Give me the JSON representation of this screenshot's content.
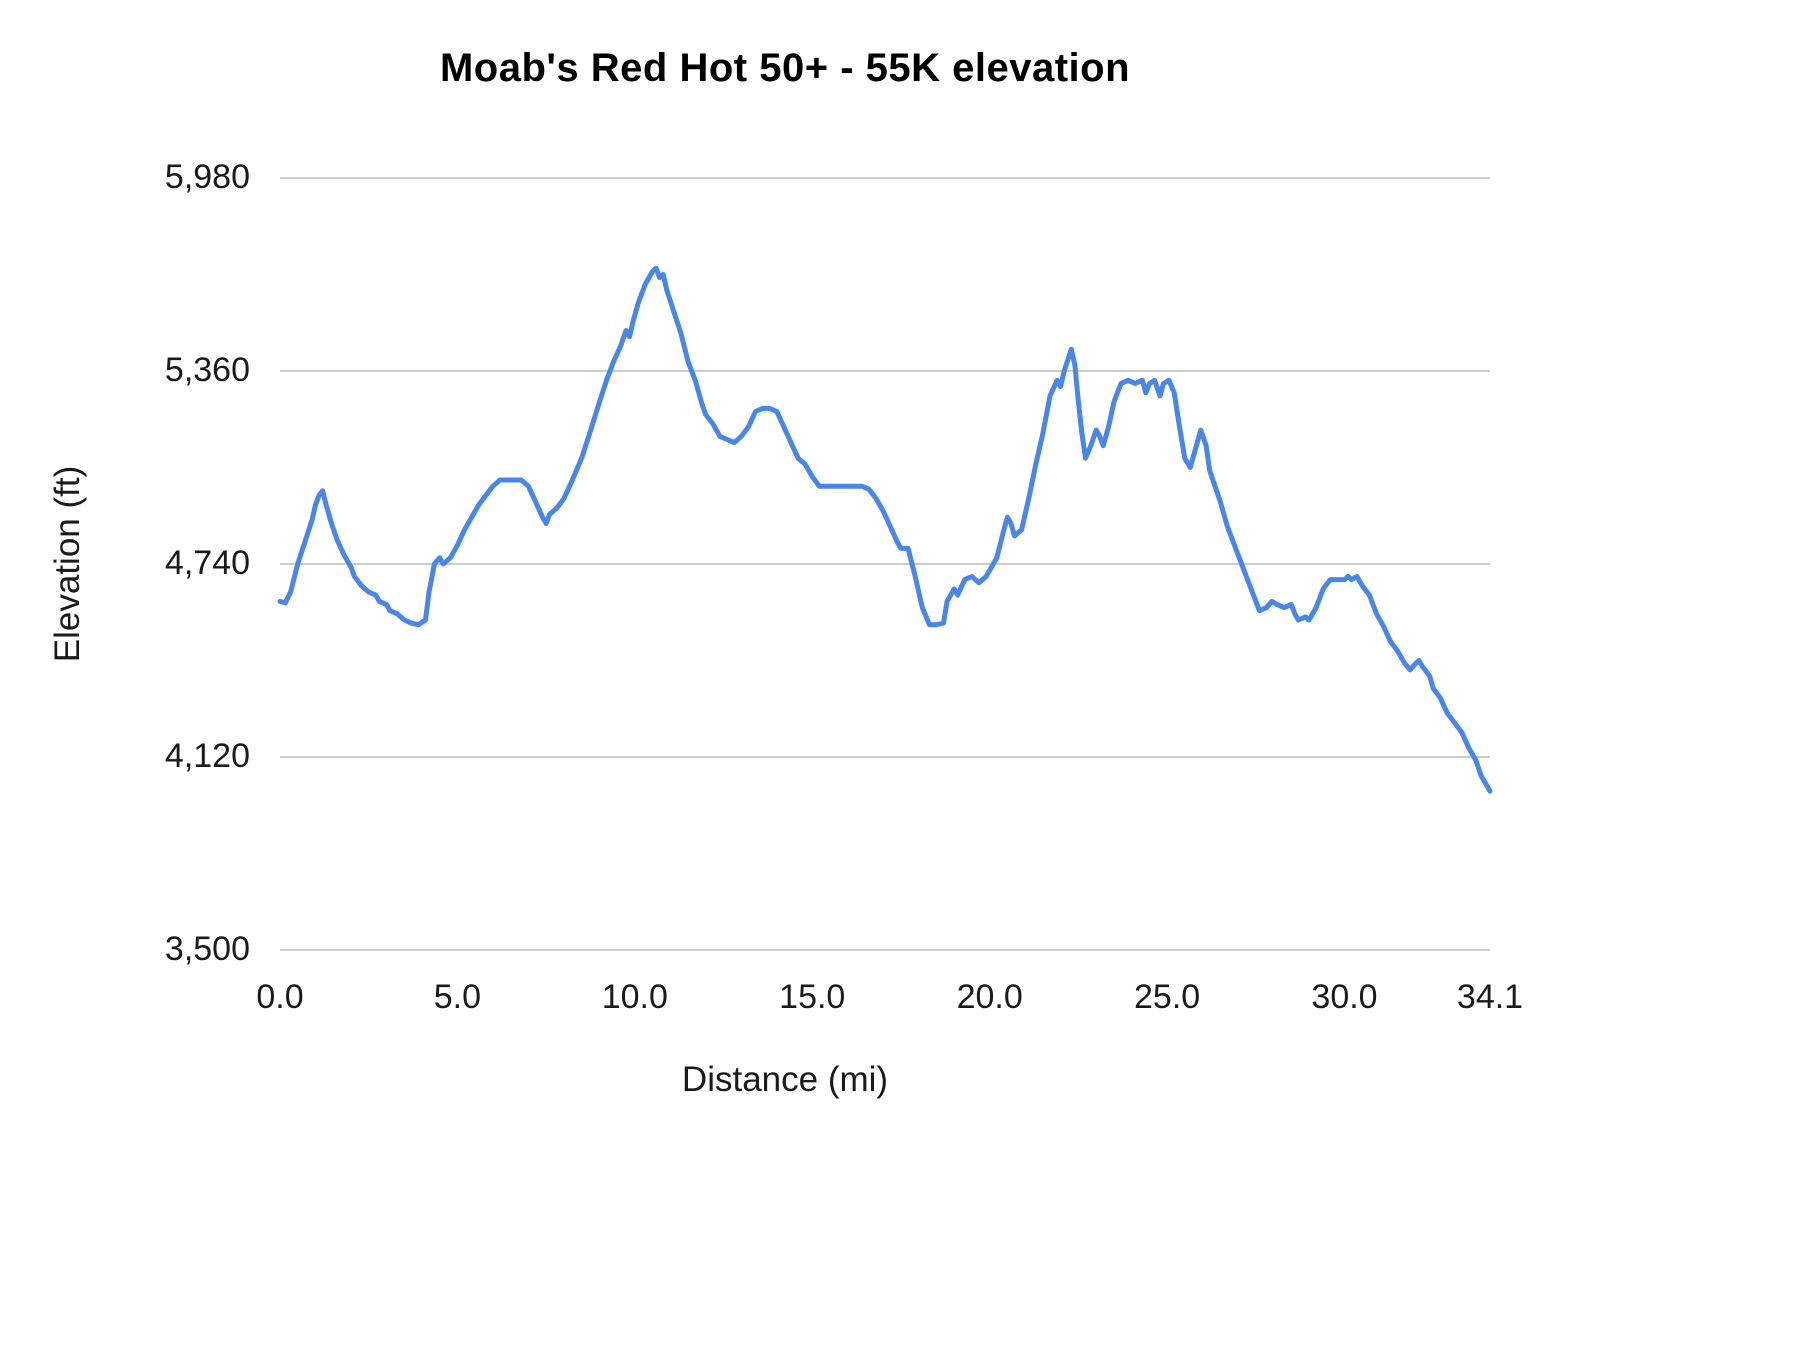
{
  "chart": {
    "title": "Moab's Red Hot 50+ - 55K elevation",
    "xlabel": "Distance (mi)",
    "ylabel": "Elevation (ft)"
  },
  "chart_data": {
    "type": "line",
    "title": "Moab's Red Hot 50+ - 55K elevation",
    "xlabel": "Distance (mi)",
    "ylabel": "Elevation (ft)",
    "xlim": [
      0,
      34.1
    ],
    "ylim": [
      3500,
      5980
    ],
    "grid": true,
    "legend": "none",
    "line_color": "#4a86e8",
    "grid_color": "#cccccc",
    "xticks": {
      "values": [
        0,
        5,
        10,
        15,
        20,
        25,
        30,
        34.1
      ],
      "labels": [
        "0.0",
        "5.0",
        "10.0",
        "15.0",
        "20.0",
        "25.0",
        "30.0",
        "34.1"
      ]
    },
    "yticks": {
      "values": [
        3500,
        4120,
        4740,
        5360,
        5980
      ],
      "labels": [
        "3,500",
        "4,120",
        "4,740",
        "5,360",
        "5,980"
      ]
    },
    "series": [
      {
        "name": "elevation",
        "points": [
          [
            0.0,
            4620
          ],
          [
            0.15,
            4615
          ],
          [
            0.3,
            4650
          ],
          [
            0.5,
            4740
          ],
          [
            0.7,
            4810
          ],
          [
            0.9,
            4880
          ],
          [
            1.0,
            4930
          ],
          [
            1.1,
            4960
          ],
          [
            1.2,
            4975
          ],
          [
            1.3,
            4930
          ],
          [
            1.45,
            4870
          ],
          [
            1.6,
            4820
          ],
          [
            1.8,
            4770
          ],
          [
            2.0,
            4730
          ],
          [
            2.1,
            4700
          ],
          [
            2.3,
            4670
          ],
          [
            2.5,
            4650
          ],
          [
            2.7,
            4640
          ],
          [
            2.8,
            4620
          ],
          [
            3.0,
            4610
          ],
          [
            3.1,
            4590
          ],
          [
            3.3,
            4580
          ],
          [
            3.5,
            4560
          ],
          [
            3.7,
            4550
          ],
          [
            3.9,
            4545
          ],
          [
            4.1,
            4560
          ],
          [
            4.2,
            4650
          ],
          [
            4.35,
            4740
          ],
          [
            4.5,
            4760
          ],
          [
            4.6,
            4740
          ],
          [
            4.8,
            4760
          ],
          [
            5.0,
            4800
          ],
          [
            5.2,
            4850
          ],
          [
            5.4,
            4890
          ],
          [
            5.6,
            4930
          ],
          [
            5.8,
            4960
          ],
          [
            6.0,
            4990
          ],
          [
            6.2,
            5010
          ],
          [
            6.5,
            5010
          ],
          [
            6.8,
            5010
          ],
          [
            7.0,
            4990
          ],
          [
            7.2,
            4940
          ],
          [
            7.4,
            4890
          ],
          [
            7.5,
            4870
          ],
          [
            7.6,
            4900
          ],
          [
            7.8,
            4920
          ],
          [
            8.0,
            4950
          ],
          [
            8.2,
            5000
          ],
          [
            8.5,
            5080
          ],
          [
            8.7,
            5150
          ],
          [
            9.0,
            5260
          ],
          [
            9.2,
            5330
          ],
          [
            9.4,
            5390
          ],
          [
            9.6,
            5440
          ],
          [
            9.75,
            5490
          ],
          [
            9.85,
            5470
          ],
          [
            9.95,
            5520
          ],
          [
            10.1,
            5580
          ],
          [
            10.3,
            5640
          ],
          [
            10.5,
            5680
          ],
          [
            10.6,
            5690
          ],
          [
            10.7,
            5660
          ],
          [
            10.8,
            5670
          ],
          [
            10.9,
            5620
          ],
          [
            11.1,
            5550
          ],
          [
            11.3,
            5480
          ],
          [
            11.5,
            5390
          ],
          [
            11.7,
            5330
          ],
          [
            11.9,
            5250
          ],
          [
            12.0,
            5220
          ],
          [
            12.2,
            5190
          ],
          [
            12.4,
            5150
          ],
          [
            12.6,
            5140
          ],
          [
            12.8,
            5130
          ],
          [
            13.0,
            5150
          ],
          [
            13.2,
            5180
          ],
          [
            13.4,
            5230
          ],
          [
            13.6,
            5240
          ],
          [
            13.8,
            5240
          ],
          [
            14.0,
            5230
          ],
          [
            14.2,
            5180
          ],
          [
            14.4,
            5130
          ],
          [
            14.6,
            5080
          ],
          [
            14.8,
            5060
          ],
          [
            15.0,
            5020
          ],
          [
            15.2,
            4990
          ],
          [
            15.5,
            4990
          ],
          [
            15.8,
            4990
          ],
          [
            16.1,
            4990
          ],
          [
            16.4,
            4990
          ],
          [
            16.6,
            4980
          ],
          [
            16.8,
            4950
          ],
          [
            17.0,
            4910
          ],
          [
            17.2,
            4860
          ],
          [
            17.4,
            4810
          ],
          [
            17.5,
            4790
          ],
          [
            17.7,
            4790
          ],
          [
            17.9,
            4700
          ],
          [
            18.1,
            4600
          ],
          [
            18.3,
            4545
          ],
          [
            18.5,
            4545
          ],
          [
            18.7,
            4550
          ],
          [
            18.8,
            4620
          ],
          [
            19.0,
            4660
          ],
          [
            19.1,
            4640
          ],
          [
            19.3,
            4690
          ],
          [
            19.5,
            4700
          ],
          [
            19.7,
            4680
          ],
          [
            19.9,
            4700
          ],
          [
            20.0,
            4720
          ],
          [
            20.2,
            4760
          ],
          [
            20.4,
            4850
          ],
          [
            20.5,
            4890
          ],
          [
            20.6,
            4870
          ],
          [
            20.7,
            4830
          ],
          [
            20.9,
            4850
          ],
          [
            21.1,
            4950
          ],
          [
            21.3,
            5060
          ],
          [
            21.5,
            5160
          ],
          [
            21.7,
            5280
          ],
          [
            21.9,
            5330
          ],
          [
            22.0,
            5310
          ],
          [
            22.1,
            5360
          ],
          [
            22.3,
            5430
          ],
          [
            22.4,
            5380
          ],
          [
            22.5,
            5260
          ],
          [
            22.6,
            5160
          ],
          [
            22.7,
            5080
          ],
          [
            22.85,
            5120
          ],
          [
            23.0,
            5170
          ],
          [
            23.1,
            5150
          ],
          [
            23.2,
            5120
          ],
          [
            23.35,
            5180
          ],
          [
            23.5,
            5260
          ],
          [
            23.7,
            5320
          ],
          [
            23.9,
            5330
          ],
          [
            24.1,
            5320
          ],
          [
            24.3,
            5330
          ],
          [
            24.4,
            5290
          ],
          [
            24.5,
            5320
          ],
          [
            24.65,
            5330
          ],
          [
            24.8,
            5280
          ],
          [
            24.9,
            5320
          ],
          [
            25.05,
            5330
          ],
          [
            25.2,
            5290
          ],
          [
            25.35,
            5180
          ],
          [
            25.5,
            5080
          ],
          [
            25.65,
            5050
          ],
          [
            25.8,
            5110
          ],
          [
            25.95,
            5170
          ],
          [
            26.1,
            5120
          ],
          [
            26.2,
            5040
          ],
          [
            26.35,
            4990
          ],
          [
            26.5,
            4940
          ],
          [
            26.7,
            4860
          ],
          [
            26.9,
            4800
          ],
          [
            27.1,
            4740
          ],
          [
            27.3,
            4680
          ],
          [
            27.5,
            4620
          ],
          [
            27.6,
            4590
          ],
          [
            27.8,
            4600
          ],
          [
            27.95,
            4620
          ],
          [
            28.1,
            4610
          ],
          [
            28.3,
            4600
          ],
          [
            28.5,
            4610
          ],
          [
            28.6,
            4580
          ],
          [
            28.7,
            4560
          ],
          [
            28.9,
            4570
          ],
          [
            29.0,
            4560
          ],
          [
            29.2,
            4600
          ],
          [
            29.4,
            4660
          ],
          [
            29.6,
            4690
          ],
          [
            29.8,
            4690
          ],
          [
            30.0,
            4690
          ],
          [
            30.1,
            4700
          ],
          [
            30.2,
            4690
          ],
          [
            30.35,
            4700
          ],
          [
            30.5,
            4670
          ],
          [
            30.7,
            4640
          ],
          [
            30.9,
            4580
          ],
          [
            31.1,
            4540
          ],
          [
            31.3,
            4490
          ],
          [
            31.5,
            4460
          ],
          [
            31.7,
            4420
          ],
          [
            31.85,
            4400
          ],
          [
            32.0,
            4420
          ],
          [
            32.1,
            4430
          ],
          [
            32.2,
            4410
          ],
          [
            32.4,
            4380
          ],
          [
            32.5,
            4340
          ],
          [
            32.7,
            4310
          ],
          [
            32.9,
            4260
          ],
          [
            33.1,
            4230
          ],
          [
            33.3,
            4200
          ],
          [
            33.5,
            4150
          ],
          [
            33.7,
            4110
          ],
          [
            33.85,
            4060
          ],
          [
            34.0,
            4030
          ],
          [
            34.1,
            4010
          ]
        ]
      }
    ]
  }
}
